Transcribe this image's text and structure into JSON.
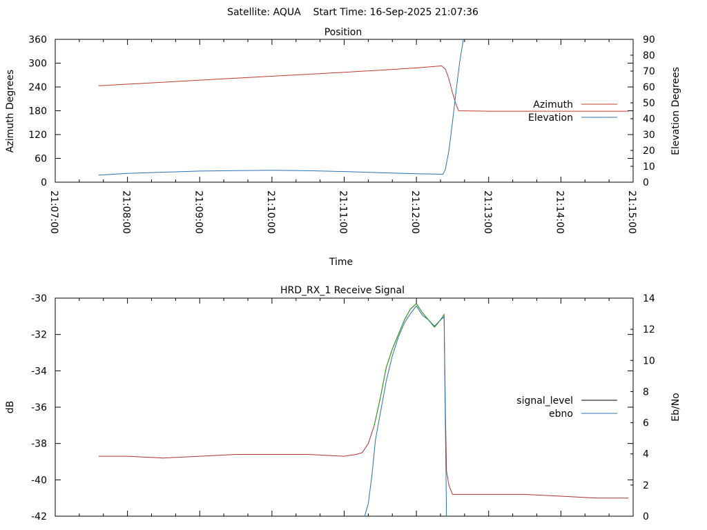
{
  "page": {
    "header": "Satellite: AQUA    Start Time: 16-Sep-2025 21:07:36"
  },
  "colors": {
    "azimuth": "#c0392b",
    "elevation": "#2a6fb0",
    "signal_level": "#b03030",
    "ebno": "#2a6fb0",
    "signal_overlap": "#1aa01a",
    "axis": "#000000",
    "background": "#ffffff"
  },
  "chart_data": [
    {
      "type": "line",
      "title": "Position",
      "xlabel": "Time",
      "ylabel": "Azimuth Degrees",
      "y2label": "Elevation Degrees",
      "xlim": [
        "21:07:00",
        "21:15:00"
      ],
      "ylim": [
        0,
        360
      ],
      "y2lim": [
        0,
        90
      ],
      "x_ticks": [
        "21:07:00",
        "21:08:00",
        "21:09:00",
        "21:10:00",
        "21:11:00",
        "21:12:00",
        "21:13:00",
        "21:14:00",
        "21:15:00"
      ],
      "y_ticks": [
        "0",
        "60",
        "120",
        "180",
        "240",
        "300",
        "360"
      ],
      "y2_ticks": [
        "0",
        "10",
        "20",
        "30",
        "40",
        "50",
        "60",
        "70",
        "80",
        "90"
      ],
      "legend_position": "right",
      "series": [
        {
          "name": "Azimuth",
          "axis": "left",
          "points": [
            [
              "21:07:36",
              243
            ],
            [
              "21:08:30",
              252
            ],
            [
              "21:09:30",
              262
            ],
            [
              "21:10:30",
              272
            ],
            [
              "21:11:30",
              282
            ],
            [
              "21:12:00",
              288
            ],
            [
              "21:12:21",
              293
            ],
            [
              "21:12:24",
              285
            ],
            [
              "21:12:27",
              260
            ],
            [
              "21:12:30",
              225
            ],
            [
              "21:12:33",
              195
            ],
            [
              "21:12:35",
              180
            ],
            [
              "21:13:00",
              179
            ],
            [
              "21:14:00",
              179
            ],
            [
              "21:14:56",
              179
            ]
          ]
        },
        {
          "name": "Elevation",
          "axis": "right",
          "points": [
            [
              "21:07:36",
              4.5
            ],
            [
              "21:08:00",
              5.5
            ],
            [
              "21:08:30",
              6.3
            ],
            [
              "21:09:00",
              7.0
            ],
            [
              "21:09:30",
              7.3
            ],
            [
              "21:10:00",
              7.5
            ],
            [
              "21:10:30",
              7.2
            ],
            [
              "21:11:00",
              6.7
            ],
            [
              "21:11:30",
              6.0
            ],
            [
              "21:12:00",
              5.3
            ],
            [
              "21:12:22",
              5.0
            ],
            [
              "21:12:24",
              8
            ],
            [
              "21:12:27",
              20
            ],
            [
              "21:12:30",
              38
            ],
            [
              "21:12:33",
              58
            ],
            [
              "21:12:36",
              76
            ],
            [
              "21:12:39",
              90
            ]
          ]
        }
      ]
    },
    {
      "type": "line",
      "title": "HRD_RX_1 Receive Signal",
      "xlabel": "",
      "ylabel": "dB",
      "y2label": "Eb/No",
      "xlim": [
        "21:07:00",
        "21:15:00"
      ],
      "ylim": [
        -42,
        -30
      ],
      "y2lim": [
        0,
        14
      ],
      "y_ticks": [
        "-30",
        "-32",
        "-34",
        "-36",
        "-38",
        "-40",
        "-42"
      ],
      "y2_ticks": [
        "0",
        "2",
        "4",
        "6",
        "8",
        "10",
        "12",
        "14"
      ],
      "legend_position": "right",
      "series": [
        {
          "name": "signal_level",
          "axis": "left",
          "points": [
            [
              "21:07:36",
              -38.7
            ],
            [
              "21:08:00",
              -38.7
            ],
            [
              "21:08:30",
              -38.8
            ],
            [
              "21:09:00",
              -38.7
            ],
            [
              "21:09:30",
              -38.6
            ],
            [
              "21:10:00",
              -38.6
            ],
            [
              "21:10:30",
              -38.6
            ],
            [
              "21:11:00",
              -38.7
            ],
            [
              "21:11:10",
              -38.6
            ],
            [
              "21:11:15",
              -38.5
            ],
            [
              "21:11:20",
              -38.0
            ],
            [
              "21:11:25",
              -37.0
            ],
            [
              "21:11:30",
              -35.5
            ],
            [
              "21:11:35",
              -33.8
            ],
            [
              "21:11:40",
              -32.8
            ],
            [
              "21:11:45",
              -32.0
            ],
            [
              "21:11:50",
              -31.2
            ],
            [
              "21:11:55",
              -30.6
            ],
            [
              "21:12:00",
              -30.3
            ],
            [
              "21:12:05",
              -30.8
            ],
            [
              "21:12:10",
              -31.2
            ],
            [
              "21:12:15",
              -31.6
            ],
            [
              "21:12:20",
              -31.2
            ],
            [
              "21:12:23",
              -30.9
            ],
            [
              "21:12:24",
              -36.0
            ],
            [
              "21:12:25",
              -39.5
            ],
            [
              "21:12:27",
              -40.3
            ],
            [
              "21:12:30",
              -40.8
            ],
            [
              "21:13:00",
              -40.8
            ],
            [
              "21:13:30",
              -40.8
            ],
            [
              "21:14:00",
              -40.9
            ],
            [
              "21:14:30",
              -41.0
            ],
            [
              "21:14:56",
              -41.0
            ]
          ]
        },
        {
          "name": "ebno",
          "axis": "right",
          "points": [
            [
              "21:11:17",
              0.0
            ],
            [
              "21:11:20",
              0.8
            ],
            [
              "21:11:23",
              2.6
            ],
            [
              "21:11:26",
              4.9
            ],
            [
              "21:11:30",
              6.6
            ],
            [
              "21:11:35",
              8.7
            ],
            [
              "21:11:40",
              10.3
            ],
            [
              "21:11:45",
              11.5
            ],
            [
              "21:11:50",
              12.4
            ],
            [
              "21:11:55",
              13.0
            ],
            [
              "21:12:00",
              13.5
            ],
            [
              "21:12:05",
              12.9
            ],
            [
              "21:12:10",
              12.6
            ],
            [
              "21:12:15",
              12.2
            ],
            [
              "21:12:20",
              12.6
            ],
            [
              "21:12:23",
              12.8
            ],
            [
              "21:12:24",
              6.0
            ],
            [
              "21:12:25",
              0.0
            ]
          ]
        }
      ]
    }
  ]
}
